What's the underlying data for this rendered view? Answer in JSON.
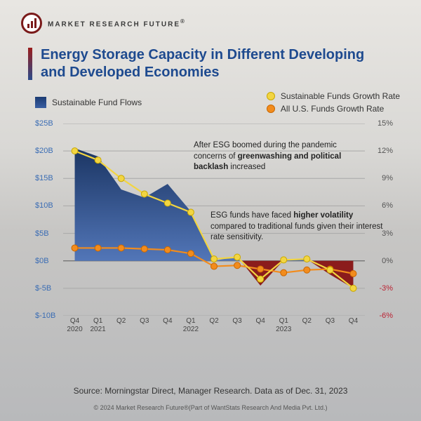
{
  "brand": {
    "name": "MARKET RESEARCH FUTURE",
    "reg": "®"
  },
  "title": {
    "line1": "Energy Storage Capacity in Different Developing",
    "line2": "and Developed Economies"
  },
  "legend": {
    "area": "Sustainable Fund Flows",
    "yellow": "Sustainable Funds Growth Rate",
    "orange": "All U.S. Funds Growth Rate"
  },
  "annot1": {
    "pre": "After ESG boomed during the pandemic concerns of ",
    "bold": "greenwashing and political backlash",
    "post": " increased"
  },
  "annot2": {
    "pre": "ESG funds have faced ",
    "bold": "higher volatility",
    "post": " compared to traditional funds given their interest rate sensitivity."
  },
  "source": "Source: Morningstar Direct, Manager Research. Data as of Dec. 31, 2023",
  "copyright": "© 2024 Market Research Future®(Part of WantStats Research And Media Pvt. Ltd.)",
  "chart": {
    "type": "combo-area-line",
    "categories": [
      "Q4 2020",
      "Q1 2021",
      "Q2",
      "Q3",
      "Q4",
      "Q1 2022",
      "Q2",
      "Q3",
      "Q4",
      "Q1 2023",
      "Q2",
      "Q3",
      "Q4"
    ],
    "left_axis": {
      "min": -10,
      "max": 25,
      "step": 5,
      "prefix": "$",
      "suffix": "B",
      "tick_color": "#3b6db4"
    },
    "right_axis": {
      "min": -6,
      "max": 15,
      "step": 3,
      "suffix": "%",
      "tick_color": "#555"
    },
    "area": {
      "values": [
        20.5,
        19.0,
        13.0,
        11.5,
        14.0,
        9.0,
        0.0,
        0.8,
        -4.5,
        0.1,
        0.3,
        -2.5,
        -5.0
      ],
      "positive_fill_top": "#1b3563",
      "positive_fill_bottom": "#5276b8",
      "negative_fill": "#8b1c1c"
    },
    "lines": {
      "yellow": {
        "color": "#f2d542",
        "stroke": "#c9a800",
        "width": 2.2,
        "marker_r": 4.5,
        "values": [
          12.0,
          11.0,
          9.0,
          7.3,
          6.3,
          5.3,
          0.2,
          0.4,
          -2.0,
          0.1,
          0.2,
          -1.0,
          -3.0
        ]
      },
      "orange": {
        "color": "#f28c1d",
        "stroke": "#c96700",
        "width": 2.2,
        "marker_r": 4.5,
        "values": [
          1.4,
          1.4,
          1.4,
          1.3,
          1.2,
          0.8,
          -0.6,
          -0.5,
          -0.9,
          -1.3,
          -1.0,
          -0.9,
          -1.4
        ]
      }
    },
    "grid_color": "#a8a8a8",
    "zero_color": "#6d6d6d",
    "background": "transparent",
    "x_label_fontsize": 10,
    "y_label_fontsize": 11
  }
}
